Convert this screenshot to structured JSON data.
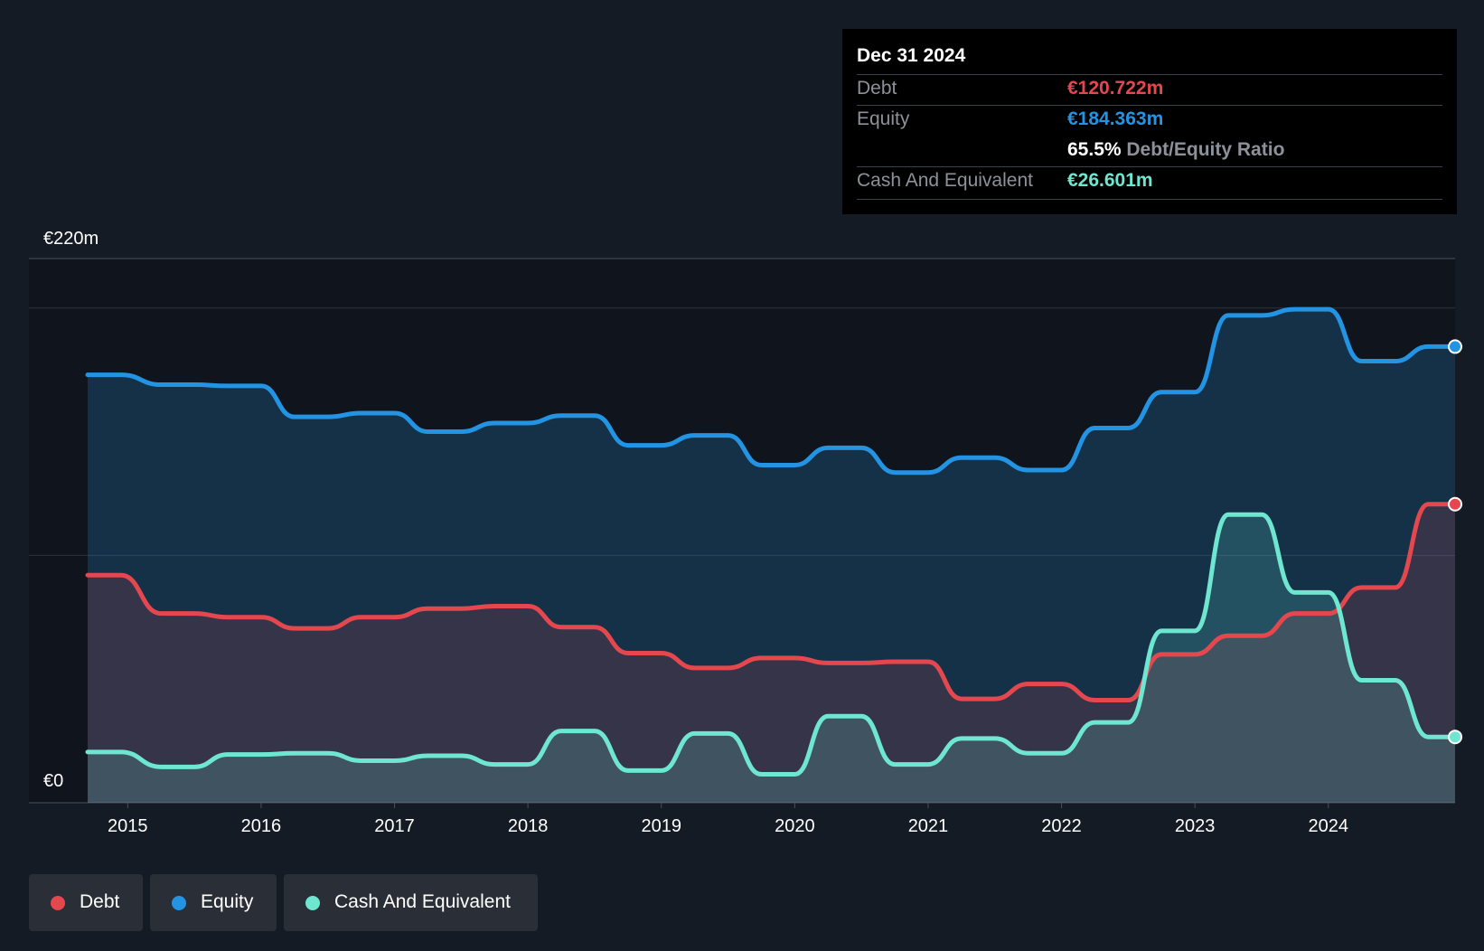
{
  "tooltip": {
    "date": "Dec 31 2024",
    "debt_label": "Debt",
    "debt_value": "€120.722m",
    "equity_label": "Equity",
    "equity_value": "€184.363m",
    "ratio_value": "65.5%",
    "ratio_label": "Debt/Equity Ratio",
    "cash_label": "Cash And Equivalent",
    "cash_value": "€26.601m"
  },
  "legend": {
    "debt": "Debt",
    "equity": "Equity",
    "cash": "Cash And Equivalent"
  },
  "colors": {
    "debt": "#e5474f",
    "equity": "#2394e3",
    "cash": "#6ee6d0",
    "background": "#151b24"
  },
  "chart_data": {
    "type": "area",
    "y_top_label": "€220m",
    "y_bottom_label": "€0",
    "ylim": [
      0,
      220
    ],
    "xlim": [
      2014.7,
      2024.95
    ],
    "x_ticks": [
      "2015",
      "2016",
      "2017",
      "2018",
      "2019",
      "2020",
      "2021",
      "2022",
      "2023",
      "2024"
    ],
    "grid": true,
    "series": [
      {
        "name": "Debt",
        "points": [
          [
            2014.7,
            92.0
          ],
          [
            2014.95,
            92.0
          ],
          [
            2015.25,
            76.5
          ],
          [
            2015.5,
            76.5
          ],
          [
            2015.75,
            75.0
          ],
          [
            2016.0,
            75.0
          ],
          [
            2016.25,
            70.5
          ],
          [
            2016.5,
            70.5
          ],
          [
            2016.75,
            75.0
          ],
          [
            2017.0,
            75.0
          ],
          [
            2017.25,
            78.5
          ],
          [
            2017.5,
            78.5
          ],
          [
            2017.75,
            79.5
          ],
          [
            2018.0,
            79.5
          ],
          [
            2018.25,
            71.0
          ],
          [
            2018.5,
            71.0
          ],
          [
            2018.75,
            60.5
          ],
          [
            2019.0,
            60.5
          ],
          [
            2019.25,
            54.5
          ],
          [
            2019.5,
            54.5
          ],
          [
            2019.75,
            58.5
          ],
          [
            2020.0,
            58.5
          ],
          [
            2020.25,
            56.5
          ],
          [
            2020.5,
            56.5
          ],
          [
            2020.75,
            57.0
          ],
          [
            2021.0,
            57.0
          ],
          [
            2021.25,
            42.0
          ],
          [
            2021.5,
            42.0
          ],
          [
            2021.75,
            48.0
          ],
          [
            2022.0,
            48.0
          ],
          [
            2022.25,
            41.5
          ],
          [
            2022.5,
            41.5
          ],
          [
            2022.75,
            60.0
          ],
          [
            2023.0,
            60.0
          ],
          [
            2023.25,
            67.5
          ],
          [
            2023.5,
            67.5
          ],
          [
            2023.75,
            76.5
          ],
          [
            2024.0,
            76.5
          ],
          [
            2024.25,
            87.0
          ],
          [
            2024.5,
            87.0
          ],
          [
            2024.75,
            120.7
          ],
          [
            2024.95,
            120.7
          ]
        ]
      },
      {
        "name": "Equity",
        "points": [
          [
            2014.7,
            173.0
          ],
          [
            2014.95,
            173.0
          ],
          [
            2015.25,
            169.0
          ],
          [
            2015.5,
            169.0
          ],
          [
            2015.75,
            168.5
          ],
          [
            2016.0,
            168.5
          ],
          [
            2016.25,
            156.0
          ],
          [
            2016.5,
            156.0
          ],
          [
            2016.75,
            157.5
          ],
          [
            2017.0,
            157.5
          ],
          [
            2017.25,
            150.0
          ],
          [
            2017.5,
            150.0
          ],
          [
            2017.75,
            153.5
          ],
          [
            2018.0,
            153.5
          ],
          [
            2018.25,
            156.5
          ],
          [
            2018.5,
            156.5
          ],
          [
            2018.75,
            144.5
          ],
          [
            2019.0,
            144.5
          ],
          [
            2019.25,
            148.5
          ],
          [
            2019.5,
            148.5
          ],
          [
            2019.75,
            136.5
          ],
          [
            2020.0,
            136.5
          ],
          [
            2020.25,
            143.5
          ],
          [
            2020.5,
            143.5
          ],
          [
            2020.75,
            133.5
          ],
          [
            2021.0,
            133.5
          ],
          [
            2021.25,
            139.5
          ],
          [
            2021.5,
            139.5
          ],
          [
            2021.75,
            134.5
          ],
          [
            2022.0,
            134.5
          ],
          [
            2022.25,
            151.5
          ],
          [
            2022.5,
            151.5
          ],
          [
            2022.75,
            166.0
          ],
          [
            2023.0,
            166.0
          ],
          [
            2023.25,
            197.0
          ],
          [
            2023.5,
            197.0
          ],
          [
            2023.75,
            199.5
          ],
          [
            2024.0,
            199.5
          ],
          [
            2024.25,
            178.5
          ],
          [
            2024.5,
            178.5
          ],
          [
            2024.75,
            184.4
          ],
          [
            2024.95,
            184.4
          ]
        ]
      },
      {
        "name": "Cash And Equivalent",
        "points": [
          [
            2014.7,
            20.5
          ],
          [
            2014.95,
            20.5
          ],
          [
            2015.25,
            14.5
          ],
          [
            2015.5,
            14.5
          ],
          [
            2015.75,
            19.5
          ],
          [
            2016.0,
            19.5
          ],
          [
            2016.25,
            20.0
          ],
          [
            2016.5,
            20.0
          ],
          [
            2016.75,
            17.0
          ],
          [
            2017.0,
            17.0
          ],
          [
            2017.25,
            19.0
          ],
          [
            2017.5,
            19.0
          ],
          [
            2017.75,
            15.5
          ],
          [
            2018.0,
            15.5
          ],
          [
            2018.25,
            29.0
          ],
          [
            2018.5,
            29.0
          ],
          [
            2018.75,
            13.0
          ],
          [
            2019.0,
            13.0
          ],
          [
            2019.25,
            28.0
          ],
          [
            2019.5,
            28.0
          ],
          [
            2019.75,
            11.5
          ],
          [
            2020.0,
            11.5
          ],
          [
            2020.25,
            35.0
          ],
          [
            2020.5,
            35.0
          ],
          [
            2020.75,
            15.5
          ],
          [
            2021.0,
            15.5
          ],
          [
            2021.25,
            26.0
          ],
          [
            2021.5,
            26.0
          ],
          [
            2021.75,
            20.0
          ],
          [
            2022.0,
            20.0
          ],
          [
            2022.25,
            32.5
          ],
          [
            2022.5,
            32.5
          ],
          [
            2022.75,
            69.5
          ],
          [
            2023.0,
            69.5
          ],
          [
            2023.25,
            116.5
          ],
          [
            2023.5,
            116.5
          ],
          [
            2023.75,
            85.0
          ],
          [
            2024.0,
            85.0
          ],
          [
            2024.25,
            49.5
          ],
          [
            2024.5,
            49.5
          ],
          [
            2024.75,
            26.6
          ],
          [
            2024.95,
            26.6
          ]
        ]
      }
    ]
  }
}
